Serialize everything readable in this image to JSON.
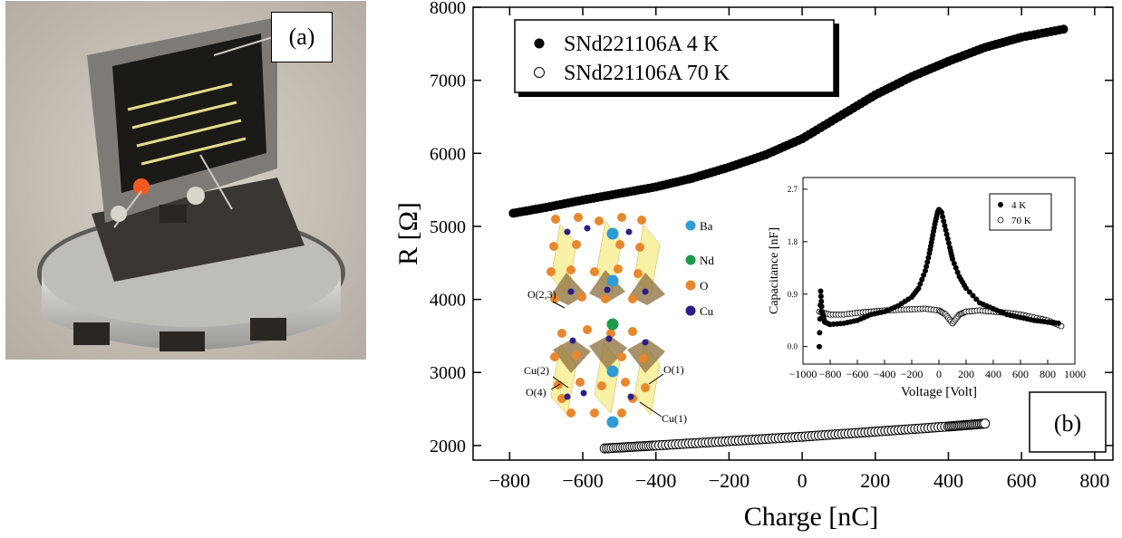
{
  "panel_a": {
    "label": "(a)",
    "image": "photograph of a superconducting film sample with meander-line electrodes and wire bonds mounted on a round holder"
  },
  "chart_data": [
    {
      "type": "scatter",
      "panel_label": "(b)",
      "xlabel": "Charge [nC]",
      "ylabel": "R [Ω]",
      "xlim": [
        -900,
        850
      ],
      "ylim": [
        1800,
        8000
      ],
      "xticks": [
        -800,
        -600,
        -400,
        -200,
        0,
        200,
        400,
        600,
        800
      ],
      "yticks": [
        2000,
        3000,
        4000,
        5000,
        6000,
        7000,
        8000
      ],
      "legend_position": "top-left",
      "series": [
        {
          "name": "SNd221106A 4 K",
          "marker": "filled-circle",
          "color": "#000000",
          "x": [
            -790,
            -700,
            -600,
            -500,
            -400,
            -300,
            -200,
            -100,
            0,
            100,
            200,
            300,
            400,
            500,
            600,
            715
          ],
          "y": [
            5180,
            5260,
            5360,
            5450,
            5540,
            5660,
            5810,
            5980,
            6200,
            6500,
            6800,
            7050,
            7260,
            7450,
            7590,
            7700
          ]
        },
        {
          "name": "SNd221106A 70 K",
          "marker": "open-circle",
          "color": "#000000",
          "x": [
            -540,
            -400,
            -200,
            0,
            200,
            400,
            500
          ],
          "y": [
            1960,
            2000,
            2060,
            2120,
            2190,
            2260,
            2300
          ]
        }
      ]
    },
    {
      "type": "scatter",
      "role": "inset",
      "xlabel": "Voltage [Volt]",
      "ylabel": "Capacitance [nF]",
      "xlim": [
        -1000,
        1000
      ],
      "ylim": [
        -0.3,
        2.9
      ],
      "xticks": [
        -1000,
        -800,
        -600,
        -400,
        -200,
        0,
        200,
        400,
        600,
        800,
        1000
      ],
      "yticks": [
        0.0,
        0.9,
        1.8,
        2.7
      ],
      "legend_position": "top-right",
      "series": [
        {
          "name": "4 K",
          "marker": "filled-circle",
          "x": [
            -880,
            -870,
            -860,
            -840,
            -800,
            -700,
            -600,
            -500,
            -400,
            -300,
            -200,
            -150,
            -100,
            -70,
            -50,
            -30,
            -10,
            0,
            20,
            50,
            80,
            100,
            150,
            200,
            300,
            400,
            500,
            600,
            700,
            800,
            880
          ],
          "y": [
            0.0,
            0.95,
            0.6,
            0.42,
            0.38,
            0.4,
            0.45,
            0.55,
            0.6,
            0.7,
            0.85,
            1.0,
            1.3,
            1.6,
            1.85,
            2.1,
            2.3,
            2.35,
            2.3,
            2.0,
            1.7,
            1.5,
            1.2,
            1.0,
            0.75,
            0.65,
            0.55,
            0.5,
            0.45,
            0.42,
            0.4
          ]
        },
        {
          "name": "70 K",
          "marker": "open-circle",
          "x": [
            -880,
            -800,
            -700,
            -600,
            -500,
            -400,
            -300,
            -200,
            -100,
            0,
            50,
            100,
            150,
            200,
            300,
            400,
            500,
            600,
            700,
            800,
            900
          ],
          "y": [
            0.6,
            0.55,
            0.55,
            0.58,
            0.6,
            0.62,
            0.63,
            0.64,
            0.65,
            0.62,
            0.55,
            0.4,
            0.55,
            0.6,
            0.62,
            0.6,
            0.58,
            0.55,
            0.5,
            0.45,
            0.35
          ]
        }
      ]
    }
  ],
  "crystal_legend": [
    "Ba",
    "Nd",
    "O",
    "Cu"
  ],
  "crystal_labels": [
    "O(2,3)",
    "Cu(2)",
    "O(1)",
    "O(4)",
    "Cu(1)"
  ],
  "colors": {
    "Ba": "#2f9bd6",
    "Nd": "#1e9a4a",
    "O": "#e8872e",
    "Cu": "#2a1f8a",
    "polyhedron": "#8b6d3a"
  }
}
